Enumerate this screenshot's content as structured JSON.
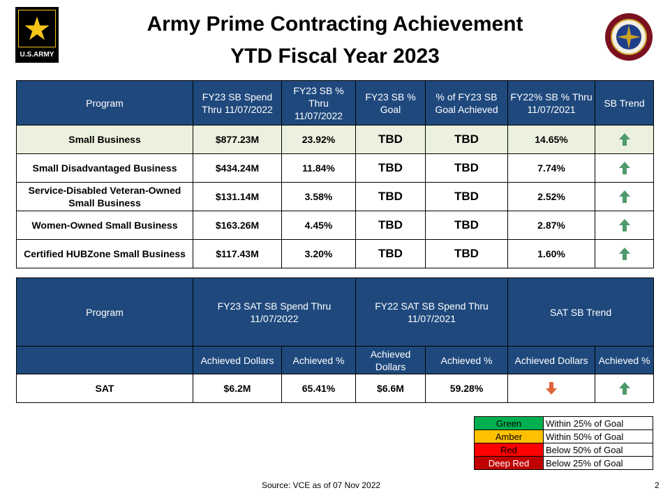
{
  "header": {
    "title_line1": "Army Prime Contracting Achievement",
    "title_line2": "YTD Fiscal Year 2023",
    "logo_text": "U.S.ARMY"
  },
  "table1": {
    "headers": [
      "Program",
      "FY23 SB Spend Thru 11/07/2022",
      "FY23 SB % Thru 11/07/2022",
      "FY23 SB % Goal",
      "% of FY23 SB Goal Achieved",
      "FY22% SB % Thru 11/07/2021",
      "SB Trend"
    ],
    "rows": [
      {
        "program": "Small Business",
        "spend": "$877.23M",
        "pct": "23.92%",
        "goal": "TBD",
        "achieved": "TBD",
        "fy22": "14.65%",
        "trend": "up"
      },
      {
        "program": "Small Disadvantaged Business",
        "spend": "$434.24M",
        "pct": "11.84%",
        "goal": "TBD",
        "achieved": "TBD",
        "fy22": "7.74%",
        "trend": "up"
      },
      {
        "program": "Service-Disabled Veteran-Owned Small Business",
        "spend": "$131.14M",
        "pct": "3.58%",
        "goal": "TBD",
        "achieved": "TBD",
        "fy22": "2.52%",
        "trend": "up"
      },
      {
        "program": "Women-Owned Small Business",
        "spend": "$163.26M",
        "pct": "4.45%",
        "goal": "TBD",
        "achieved": "TBD",
        "fy22": "2.87%",
        "trend": "up"
      },
      {
        "program": "Certified HUBZone Small Business",
        "spend": "$117.43M",
        "pct": "3.20%",
        "goal": "TBD",
        "achieved": "TBD",
        "fy22": "1.60%",
        "trend": "up"
      }
    ]
  },
  "table2": {
    "header_program": "Program",
    "header_fy23": "FY23 SAT SB Spend Thru 11/07/2022",
    "header_fy22": "FY22 SAT SB Spend Thru 11/07/2021",
    "header_trend": "SAT SB Trend",
    "sub_dollars": "Achieved Dollars",
    "sub_pct": "Achieved %",
    "row": {
      "program": "SAT",
      "fy23_dollars": "$6.2M",
      "fy23_pct": "65.41%",
      "fy22_dollars": "$6.6M",
      "fy22_pct": "59.28%",
      "trend_dollars": "down",
      "trend_pct": "up"
    }
  },
  "legend": [
    {
      "label": "Green",
      "desc": "Within 25% of Goal",
      "color": "#00b050",
      "text_color": "#000000"
    },
    {
      "label": "Amber",
      "desc": "Within 50% of Goal",
      "color": "#ffc000",
      "text_color": "#000000"
    },
    {
      "label": "Red",
      "desc": "Below 50% of Goal",
      "color": "#ff0000",
      "text_color": "#000000"
    },
    {
      "label": "Deep Red",
      "desc": "Below 25% of Goal",
      "color": "#c00000",
      "text_color": "#ffffff"
    }
  ],
  "colors": {
    "header_bg": "#1f497d",
    "highlight_row": "#ebf1de",
    "arrow_up": "#4e9a6b",
    "arrow_down": "#e0633a"
  },
  "footer": {
    "source": "Source: VCE as of 07 Nov 2022",
    "page": "2"
  }
}
